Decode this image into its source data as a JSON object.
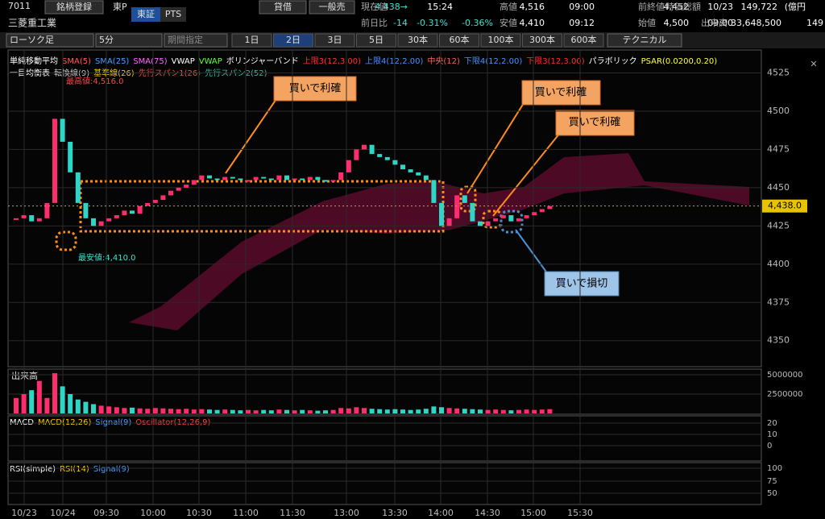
{
  "header": {
    "code": "7011",
    "register": "銘柄登録",
    "market": "東P",
    "exchanges": [
      "東証",
      "PTS"
    ],
    "name": "三菱重工業",
    "buttons": [
      "貸借",
      "一般売"
    ],
    "row1": [
      "現在値",
      "4,438→",
      "15:24",
      "高値",
      "4,516",
      "09:00",
      "前終値",
      "4,452",
      "10/23",
      "時価総額",
      "149,722",
      "(億円"
    ],
    "row2": [
      "前日比",
      "-14",
      "-0.31%",
      "-0.36%",
      "安値",
      "4,410",
      "09:12",
      "始値",
      "4,500",
      "09:00",
      "出来高",
      "33,648,500",
      "149"
    ]
  },
  "toolbar": {
    "chart_type": "ローソク足",
    "interval": "5分",
    "period": "期間指定",
    "ranges": [
      "1日",
      "2日",
      "3日",
      "5日",
      "30本",
      "60本",
      "100本",
      "300本",
      "600本"
    ],
    "active_range": 1,
    "technical": "テクニカル"
  },
  "legend": [
    [
      {
        "text": "単純移動平均",
        "color": "#ffffff"
      },
      {
        "text": "SMA(5)",
        "color": "#ff5a5a"
      },
      {
        "text": "SMA(25)",
        "color": "#4aa0ff"
      },
      {
        "text": "SMA(75)",
        "color": "#ff66ff"
      },
      {
        "text": "VWAP",
        "color": "#ffffff"
      },
      {
        "text": "VWAP",
        "color": "#66ff33"
      },
      {
        "text": "ボリンジャーバンド",
        "color": "#ffffff"
      },
      {
        "text": "上限3(12,3.00)",
        "color": "#ff3030"
      },
      {
        "text": "上限4(12,2.00)",
        "color": "#4a90ff"
      },
      {
        "text": "中央(12)",
        "color": "#ff5a5a"
      },
      {
        "text": "下限4(12,2.00)",
        "color": "#4a90ff"
      },
      {
        "text": "下限3(12,3.00)",
        "color": "#ff3030"
      },
      {
        "text": "パラボリック",
        "color": "#ffffff"
      },
      {
        "text": "PSAR(0.0200,0.20)",
        "color": "#ffff40"
      }
    ],
    [
      {
        "text": "一目均衡表",
        "color": "#ffffff"
      },
      {
        "text": "転換線(9)",
        "color": "#c8c8c8"
      },
      {
        "text": "基準線(26)",
        "color": "#ffcc00"
      },
      {
        "text": "先行スパン1(26)",
        "color": "#ff4040"
      },
      {
        "text": "先行スパン2(52)",
        "color": "#20c0a0"
      }
    ]
  ],
  "chart_data": {
    "type": "candlestick",
    "ylim": [
      4333,
      4540
    ],
    "yticks": [
      4350,
      4375,
      4400,
      4425,
      4450,
      4475,
      4500,
      4525
    ],
    "xticks": [
      "10/23",
      "10/24",
      "09:30",
      "10:00",
      "10:30",
      "11:00",
      "11:30",
      "13:00",
      "13:30",
      "14:00",
      "14:30",
      "15:00",
      "15:30"
    ],
    "closes": [
      4430,
      4432,
      4428,
      4430,
      4440,
      4495,
      4480,
      4460,
      4440,
      4430,
      4425,
      4428,
      4430,
      4432,
      4435,
      4433,
      4438,
      4440,
      4442,
      4445,
      4448,
      4450,
      4452,
      4455,
      4458,
      4456,
      4455,
      4457,
      4456,
      4455,
      4455,
      4457,
      4456,
      4455,
      4458,
      4455,
      4456,
      4455,
      4457,
      4455,
      4454,
      4455,
      4460,
      4468,
      4475,
      4478,
      4472,
      4470,
      4468,
      4465,
      4462,
      4460,
      4458,
      4455,
      4440,
      4425,
      4430,
      4445,
      4440,
      4428,
      4425,
      4428,
      4430,
      4432,
      4428,
      4430,
      4432,
      4434,
      4436,
      4438
    ],
    "last_price": "4,438.0",
    "high_label": "最高値:4,516.0",
    "low_label": "最安値:4,410.0",
    "annotations": [
      "買いで利確",
      "買いで利確",
      "買いで利確",
      "買いで損切"
    ]
  },
  "volume": {
    "title": "出来高",
    "ylim": [
      0,
      5730000
    ],
    "yticks": [
      2500000,
      5000000
    ],
    "values": [
      2000000,
      2500000,
      3000000,
      4200000,
      2000000,
      5200000,
      3500000,
      2500000,
      1800000,
      1500000,
      1200000,
      1000000,
      900000,
      800000,
      700000,
      750000,
      650000,
      600000,
      700000,
      650000,
      600000,
      550000,
      600000,
      500000,
      550000,
      500000,
      450000,
      500000,
      450000,
      400000,
      450000,
      400000,
      450000,
      400000,
      500000,
      450000,
      400000,
      450000,
      400000,
      350000,
      400000,
      450000,
      700000,
      650000,
      800000,
      700000,
      600000,
      550000,
      500000,
      550000,
      500000,
      450000,
      500000,
      600000,
      900000,
      800000,
      700000,
      650000,
      600000,
      550000,
      500000,
      450000,
      500000,
      450000,
      400000,
      450000,
      500000,
      450000,
      500000,
      550000
    ]
  },
  "macd": {
    "labels": [
      "MACD",
      "MACD(12,26)",
      "Signal(9)",
      "Oscillator(12,26,9)"
    ],
    "yticks": [
      0,
      10,
      20
    ]
  },
  "rsi": {
    "labels": [
      "RSI(simple)",
      "RSI(14)",
      "Signal(9)"
    ],
    "yticks": [
      50,
      75,
      100
    ]
  }
}
